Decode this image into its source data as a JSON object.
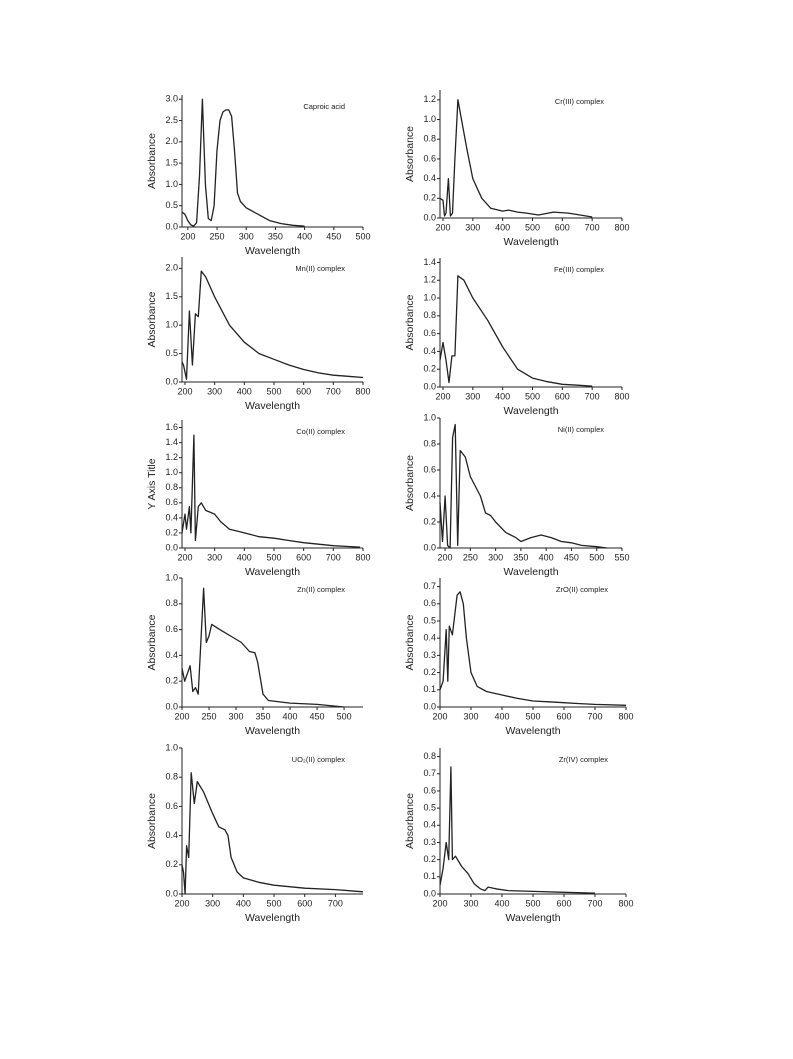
{
  "chart_data": [
    {
      "type": "line",
      "title": "Caproic acid",
      "xlabel": "Wavelength",
      "ylabel": "Absorbance",
      "color": "#222222",
      "x": [
        190,
        195,
        200,
        205,
        210,
        215,
        220,
        225,
        230,
        235,
        240,
        245,
        250,
        255,
        260,
        265,
        270,
        275,
        280,
        285,
        290,
        300,
        320,
        340,
        360,
        380,
        400
      ],
      "values": [
        0.35,
        0.3,
        0.15,
        0.05,
        0.02,
        0.1,
        1.2,
        3.0,
        1.0,
        0.2,
        0.15,
        0.5,
        1.8,
        2.5,
        2.7,
        2.75,
        2.75,
        2.6,
        1.8,
        0.8,
        0.6,
        0.45,
        0.3,
        0.15,
        0.08,
        0.04,
        0.02
      ],
      "xlim": [
        190,
        500
      ],
      "xticks": [
        200,
        250,
        300,
        350,
        400,
        450,
        500
      ],
      "ylim": [
        0,
        3.1
      ],
      "yticks": [
        {
          "value": 0,
          "label": "0.0"
        },
        0.5,
        {
          "value": 1,
          "label": "1.0"
        },
        1.5,
        {
          "value": 2,
          "label": "2.0"
        },
        2.5,
        {
          "value": 3,
          "label": "3.0"
        }
      ]
    },
    {
      "type": "line",
      "title": "Cr(III) complex",
      "xlabel": "Wavelength",
      "ylabel": "Absorbance",
      "color": "#222222",
      "x": [
        190,
        200,
        205,
        210,
        218,
        225,
        232,
        240,
        250,
        265,
        280,
        300,
        330,
        360,
        400,
        420,
        450,
        480,
        520,
        570,
        620,
        680,
        700
      ],
      "values": [
        0.2,
        0.18,
        0.02,
        0.05,
        0.4,
        0.02,
        0.05,
        0.6,
        1.2,
        0.95,
        0.7,
        0.4,
        0.2,
        0.1,
        0.07,
        0.08,
        0.06,
        0.05,
        0.03,
        0.06,
        0.05,
        0.02,
        0.01
      ],
      "xlim": [
        190,
        800
      ],
      "xticks": [
        200,
        300,
        400,
        500,
        600,
        700,
        800
      ],
      "ylim": [
        0,
        1.3
      ],
      "yticks": [
        {
          "value": 0,
          "label": "0.0"
        },
        0.2,
        0.4,
        0.6,
        0.8,
        {
          "value": 1,
          "label": "1.0"
        },
        1.2
      ]
    },
    {
      "type": "line",
      "title": "Mn(II) complex",
      "xlabel": "Wavelength",
      "ylabel": "Absorbance",
      "color": "#222222",
      "x": [
        190,
        195,
        205,
        215,
        225,
        235,
        245,
        255,
        270,
        300,
        350,
        400,
        450,
        500,
        550,
        600,
        650,
        700,
        750,
        800
      ],
      "values": [
        0.35,
        0.3,
        0.05,
        1.25,
        0.3,
        1.2,
        1.15,
        1.95,
        1.85,
        1.5,
        1.0,
        0.7,
        0.5,
        0.4,
        0.3,
        0.22,
        0.16,
        0.12,
        0.1,
        0.08
      ],
      "xlim": [
        190,
        800
      ],
      "xticks": [
        200,
        300,
        400,
        500,
        600,
        700,
        800
      ],
      "ylim": [
        0,
        2.2
      ],
      "yticks": [
        {
          "value": 0,
          "label": "0.0"
        },
        0.5,
        {
          "value": 1,
          "label": "1.0"
        },
        1.5,
        {
          "value": 2,
          "label": "2.0"
        }
      ]
    },
    {
      "type": "line",
      "title": "Fe(III) complex",
      "xlabel": "Wavelength",
      "ylabel": "Absorbance",
      "color": "#222222",
      "x": [
        190,
        200,
        210,
        220,
        230,
        240,
        250,
        270,
        300,
        350,
        400,
        450,
        500,
        550,
        600,
        650,
        700
      ],
      "values": [
        0.3,
        0.5,
        0.3,
        0.05,
        0.35,
        0.35,
        1.25,
        1.2,
        1.0,
        0.75,
        0.45,
        0.2,
        0.1,
        0.06,
        0.03,
        0.02,
        0.01
      ],
      "xlim": [
        190,
        800
      ],
      "xticks": [
        200,
        300,
        400,
        500,
        600,
        700,
        800
      ],
      "ylim": [
        0,
        1.45
      ],
      "yticks": [
        {
          "value": 0,
          "label": "0.0"
        },
        0.2,
        0.4,
        0.6,
        0.8,
        {
          "value": 1,
          "label": "1.0"
        },
        1.2,
        1.4
      ]
    },
    {
      "type": "line",
      "title": "Co(II) complex",
      "xlabel": "Wavelength",
      "ylabel": "Y Axis Title",
      "color": "#222222",
      "x": [
        190,
        200,
        205,
        215,
        220,
        230,
        235,
        245,
        255,
        270,
        300,
        320,
        350,
        380,
        420,
        450,
        500,
        550,
        600,
        650,
        700,
        750,
        790
      ],
      "values": [
        0.2,
        0.45,
        0.25,
        0.55,
        0.2,
        1.5,
        0.1,
        0.55,
        0.6,
        0.5,
        0.45,
        0.35,
        0.25,
        0.22,
        0.18,
        0.15,
        0.13,
        0.1,
        0.07,
        0.05,
        0.03,
        0.02,
        0.01
      ],
      "xlim": [
        190,
        800
      ],
      "xticks": [
        200,
        300,
        400,
        500,
        600,
        700,
        800
      ],
      "ylim": [
        0,
        1.7
      ],
      "yticks": [
        {
          "value": 0,
          "label": "0.0"
        },
        0.2,
        0.4,
        0.6,
        0.8,
        {
          "value": 1,
          "label": "1.0"
        },
        1.2,
        1.4,
        1.6
      ]
    },
    {
      "type": "line",
      "title": "Ni(II) complex",
      "xlabel": "Wavelength",
      "ylabel": "Absorbance",
      "color": "#222222",
      "x": [
        190,
        195,
        200,
        205,
        210,
        215,
        220,
        225,
        230,
        240,
        250,
        270,
        280,
        290,
        300,
        320,
        340,
        350,
        370,
        390,
        410,
        430,
        450,
        470,
        500,
        520
      ],
      "values": [
        0.35,
        0.05,
        0.4,
        0.02,
        0.0,
        0.85,
        0.95,
        0.02,
        0.75,
        0.7,
        0.55,
        0.4,
        0.27,
        0.25,
        0.2,
        0.12,
        0.08,
        0.05,
        0.08,
        0.1,
        0.08,
        0.05,
        0.04,
        0.02,
        0.01,
        0.0
      ],
      "xlim": [
        190,
        550
      ],
      "xticks": [
        200,
        250,
        300,
        350,
        400,
        450,
        500,
        550
      ],
      "ylim": [
        0,
        1.0
      ],
      "yticks": [
        {
          "value": 0,
          "label": "0.0"
        },
        0.2,
        0.4,
        0.6,
        0.8,
        {
          "value": 1,
          "label": "1.0"
        }
      ]
    },
    {
      "type": "line",
      "title": "Zn(II) complex",
      "xlabel": "Wavelength",
      "ylabel": "Absorbance",
      "color": "#222222",
      "x": [
        200,
        205,
        215,
        220,
        225,
        230,
        240,
        245,
        250,
        255,
        270,
        290,
        310,
        325,
        335,
        340,
        350,
        360,
        400,
        450,
        500
      ],
      "values": [
        0.3,
        0.2,
        0.32,
        0.12,
        0.15,
        0.1,
        0.92,
        0.5,
        0.55,
        0.64,
        0.6,
        0.55,
        0.5,
        0.43,
        0.42,
        0.35,
        0.1,
        0.05,
        0.03,
        0.02,
        0.0
      ],
      "xlim": [
        200,
        535
      ],
      "xticks": [
        200,
        250,
        300,
        350,
        400,
        450,
        500
      ],
      "ylim": [
        0,
        1.0
      ],
      "yticks": [
        {
          "value": 0,
          "label": "0.0"
        },
        0.2,
        0.4,
        0.6,
        0.8,
        {
          "value": 1,
          "label": "1.0"
        }
      ]
    },
    {
      "type": "line",
      "title": "ZrO(II) complex",
      "xlabel": "Wavelength",
      "ylabel": "Absorbance",
      "color": "#222222",
      "x": [
        200,
        210,
        220,
        225,
        230,
        240,
        255,
        265,
        275,
        285,
        300,
        320,
        350,
        400,
        450,
        500,
        550,
        600,
        650,
        700,
        800
      ],
      "values": [
        0.1,
        0.15,
        0.45,
        0.15,
        0.47,
        0.42,
        0.65,
        0.67,
        0.6,
        0.4,
        0.2,
        0.12,
        0.09,
        0.07,
        0.05,
        0.035,
        0.03,
        0.025,
        0.02,
        0.015,
        0.01
      ],
      "xlim": [
        200,
        800
      ],
      "xticks": [
        200,
        300,
        400,
        500,
        600,
        700,
        800
      ],
      "ylim": [
        0,
        0.75
      ],
      "yticks": [
        {
          "value": 0,
          "label": "0.0"
        },
        0.1,
        0.2,
        0.3,
        0.4,
        0.5,
        0.6,
        0.7
      ]
    },
    {
      "type": "line",
      "title": "UO₂(II) complex",
      "xlabel": "Wavelength",
      "ylabel": "Absorbance",
      "color": "#222222",
      "x": [
        200,
        205,
        210,
        215,
        222,
        230,
        240,
        250,
        270,
        300,
        320,
        340,
        350,
        360,
        380,
        400,
        450,
        500,
        600,
        700,
        790
      ],
      "values": [
        0.2,
        0.15,
        0.0,
        0.33,
        0.25,
        0.83,
        0.62,
        0.77,
        0.7,
        0.55,
        0.46,
        0.44,
        0.4,
        0.25,
        0.15,
        0.11,
        0.08,
        0.06,
        0.04,
        0.03,
        0.015
      ],
      "xlim": [
        200,
        790
      ],
      "xticks": [
        200,
        300,
        400,
        500,
        600,
        700
      ],
      "ylim": [
        0,
        1.0
      ],
      "yticks": [
        {
          "value": 0,
          "label": "0.0"
        },
        0.2,
        0.4,
        0.6,
        0.8,
        {
          "value": 1,
          "label": "1.0"
        }
      ]
    },
    {
      "type": "line",
      "title": "Zr(IV) complex",
      "xlabel": "Wavelength",
      "ylabel": "Absorbance",
      "color": "#222222",
      "x": [
        200,
        210,
        220,
        228,
        235,
        240,
        250,
        270,
        290,
        310,
        330,
        345,
        355,
        380,
        420,
        500,
        600,
        700
      ],
      "values": [
        0.05,
        0.15,
        0.3,
        0.2,
        0.74,
        0.2,
        0.22,
        0.16,
        0.12,
        0.06,
        0.03,
        0.02,
        0.04,
        0.03,
        0.02,
        0.015,
        0.01,
        0.005
      ],
      "xlim": [
        200,
        800
      ],
      "xticks": [
        200,
        300,
        400,
        500,
        600,
        700,
        800
      ],
      "ylim": [
        0,
        0.85
      ],
      "yticks": [
        {
          "value": 0,
          "label": "0.0"
        },
        0.1,
        0.2,
        0.3,
        0.4,
        0.5,
        0.6,
        0.7,
        0.8
      ]
    }
  ]
}
